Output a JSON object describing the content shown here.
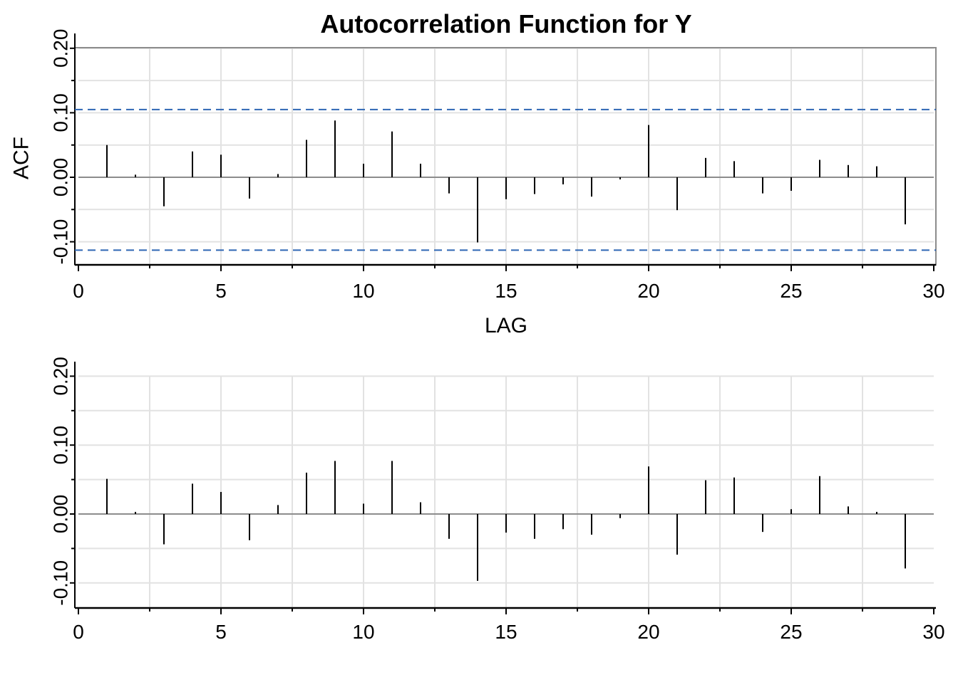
{
  "chart_data": [
    {
      "type": "bar",
      "title": "Autocorrelation Function for Y",
      "xlabel": "LAG",
      "ylabel": "ACF",
      "xlim": [
        0,
        30
      ],
      "ylim": [
        -0.13,
        0.2
      ],
      "x_ticks": [
        "0",
        "5",
        "10",
        "15",
        "20",
        "25",
        "30"
      ],
      "y_ticks": [
        "-0.10",
        "0.00",
        "0.10",
        "0.20"
      ],
      "grid": true,
      "confidence_band": [
        -0.113,
        0.105
      ],
      "confidence_color": "#2e66b4",
      "lags": [
        1,
        2,
        3,
        4,
        5,
        6,
        7,
        8,
        9,
        10,
        11,
        12,
        13,
        14,
        15,
        16,
        17,
        18,
        19,
        20,
        21,
        22,
        23,
        24,
        25,
        26,
        27,
        28,
        29
      ],
      "values": [
        0.05,
        0.004,
        -0.045,
        0.04,
        0.035,
        -0.033,
        0.005,
        0.058,
        0.088,
        0.021,
        0.071,
        0.021,
        -0.025,
        -0.101,
        -0.034,
        -0.026,
        -0.011,
        -0.03,
        -0.003,
        0.081,
        -0.051,
        0.03,
        0.025,
        -0.025,
        -0.021,
        0.027,
        0.019,
        0.017,
        -0.073
      ]
    },
    {
      "type": "bar",
      "title": "",
      "xlabel": "",
      "ylabel": "",
      "xlim": [
        0,
        30
      ],
      "ylim": [
        -0.135,
        0.2
      ],
      "x_ticks": [
        "0",
        "5",
        "10",
        "15",
        "20",
        "25",
        "30"
      ],
      "y_ticks": [
        "-0.10",
        "0.00",
        "0.10",
        "0.20"
      ],
      "grid": true,
      "lags": [
        1,
        2,
        3,
        4,
        5,
        6,
        7,
        8,
        9,
        10,
        11,
        12,
        13,
        14,
        15,
        16,
        17,
        18,
        19,
        20,
        21,
        22,
        23,
        24,
        25,
        26,
        27,
        28,
        29
      ],
      "values": [
        0.051,
        0.002,
        -0.044,
        0.044,
        0.032,
        -0.038,
        0.013,
        0.06,
        0.077,
        0.015,
        0.077,
        0.017,
        -0.036,
        -0.097,
        -0.027,
        -0.036,
        -0.022,
        -0.03,
        -0.006,
        0.069,
        -0.059,
        0.049,
        0.053,
        -0.026,
        0.007,
        0.055,
        0.011,
        0.001,
        -0.079
      ]
    }
  ]
}
